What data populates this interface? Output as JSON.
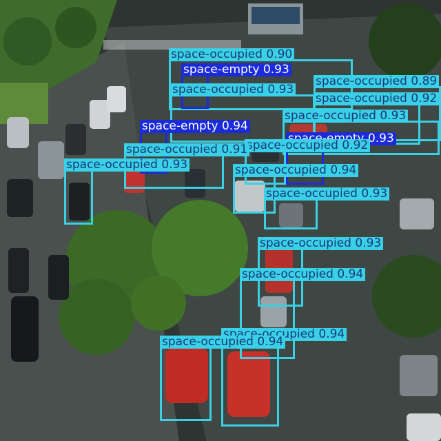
{
  "classes": {
    "occupied": "space-occupied",
    "empty": "space-empty"
  },
  "colors": {
    "occupied_box": "#3ad0e6",
    "occupied_text": "#173a78",
    "empty_box": "#1b2bd9",
    "empty_text": "#ffffff"
  },
  "detections": [
    {
      "cls": "occupied",
      "conf": "0.90"
    },
    {
      "cls": "empty",
      "conf": "0.93"
    },
    {
      "cls": "occupied",
      "conf": "0.89"
    },
    {
      "cls": "occupied",
      "conf": "0.93"
    },
    {
      "cls": "occupied",
      "conf": "0.92"
    },
    {
      "cls": "occupied",
      "conf": "0.93"
    },
    {
      "cls": "empty",
      "conf": "0.94"
    },
    {
      "cls": "empty",
      "conf": "0.93"
    },
    {
      "cls": "occupied",
      "conf": "0.92"
    },
    {
      "cls": "occupied",
      "conf": "0.91"
    },
    {
      "cls": "occupied",
      "conf": "0.93"
    },
    {
      "cls": "occupied",
      "conf": "0.94"
    },
    {
      "cls": "occupied",
      "conf": "0.93"
    },
    {
      "cls": "occupied",
      "conf": "0.93"
    },
    {
      "cls": "occupied",
      "conf": "0.94"
    },
    {
      "cls": "occupied",
      "conf": "0.94"
    },
    {
      "cls": "occupied",
      "conf": "0.94"
    }
  ]
}
